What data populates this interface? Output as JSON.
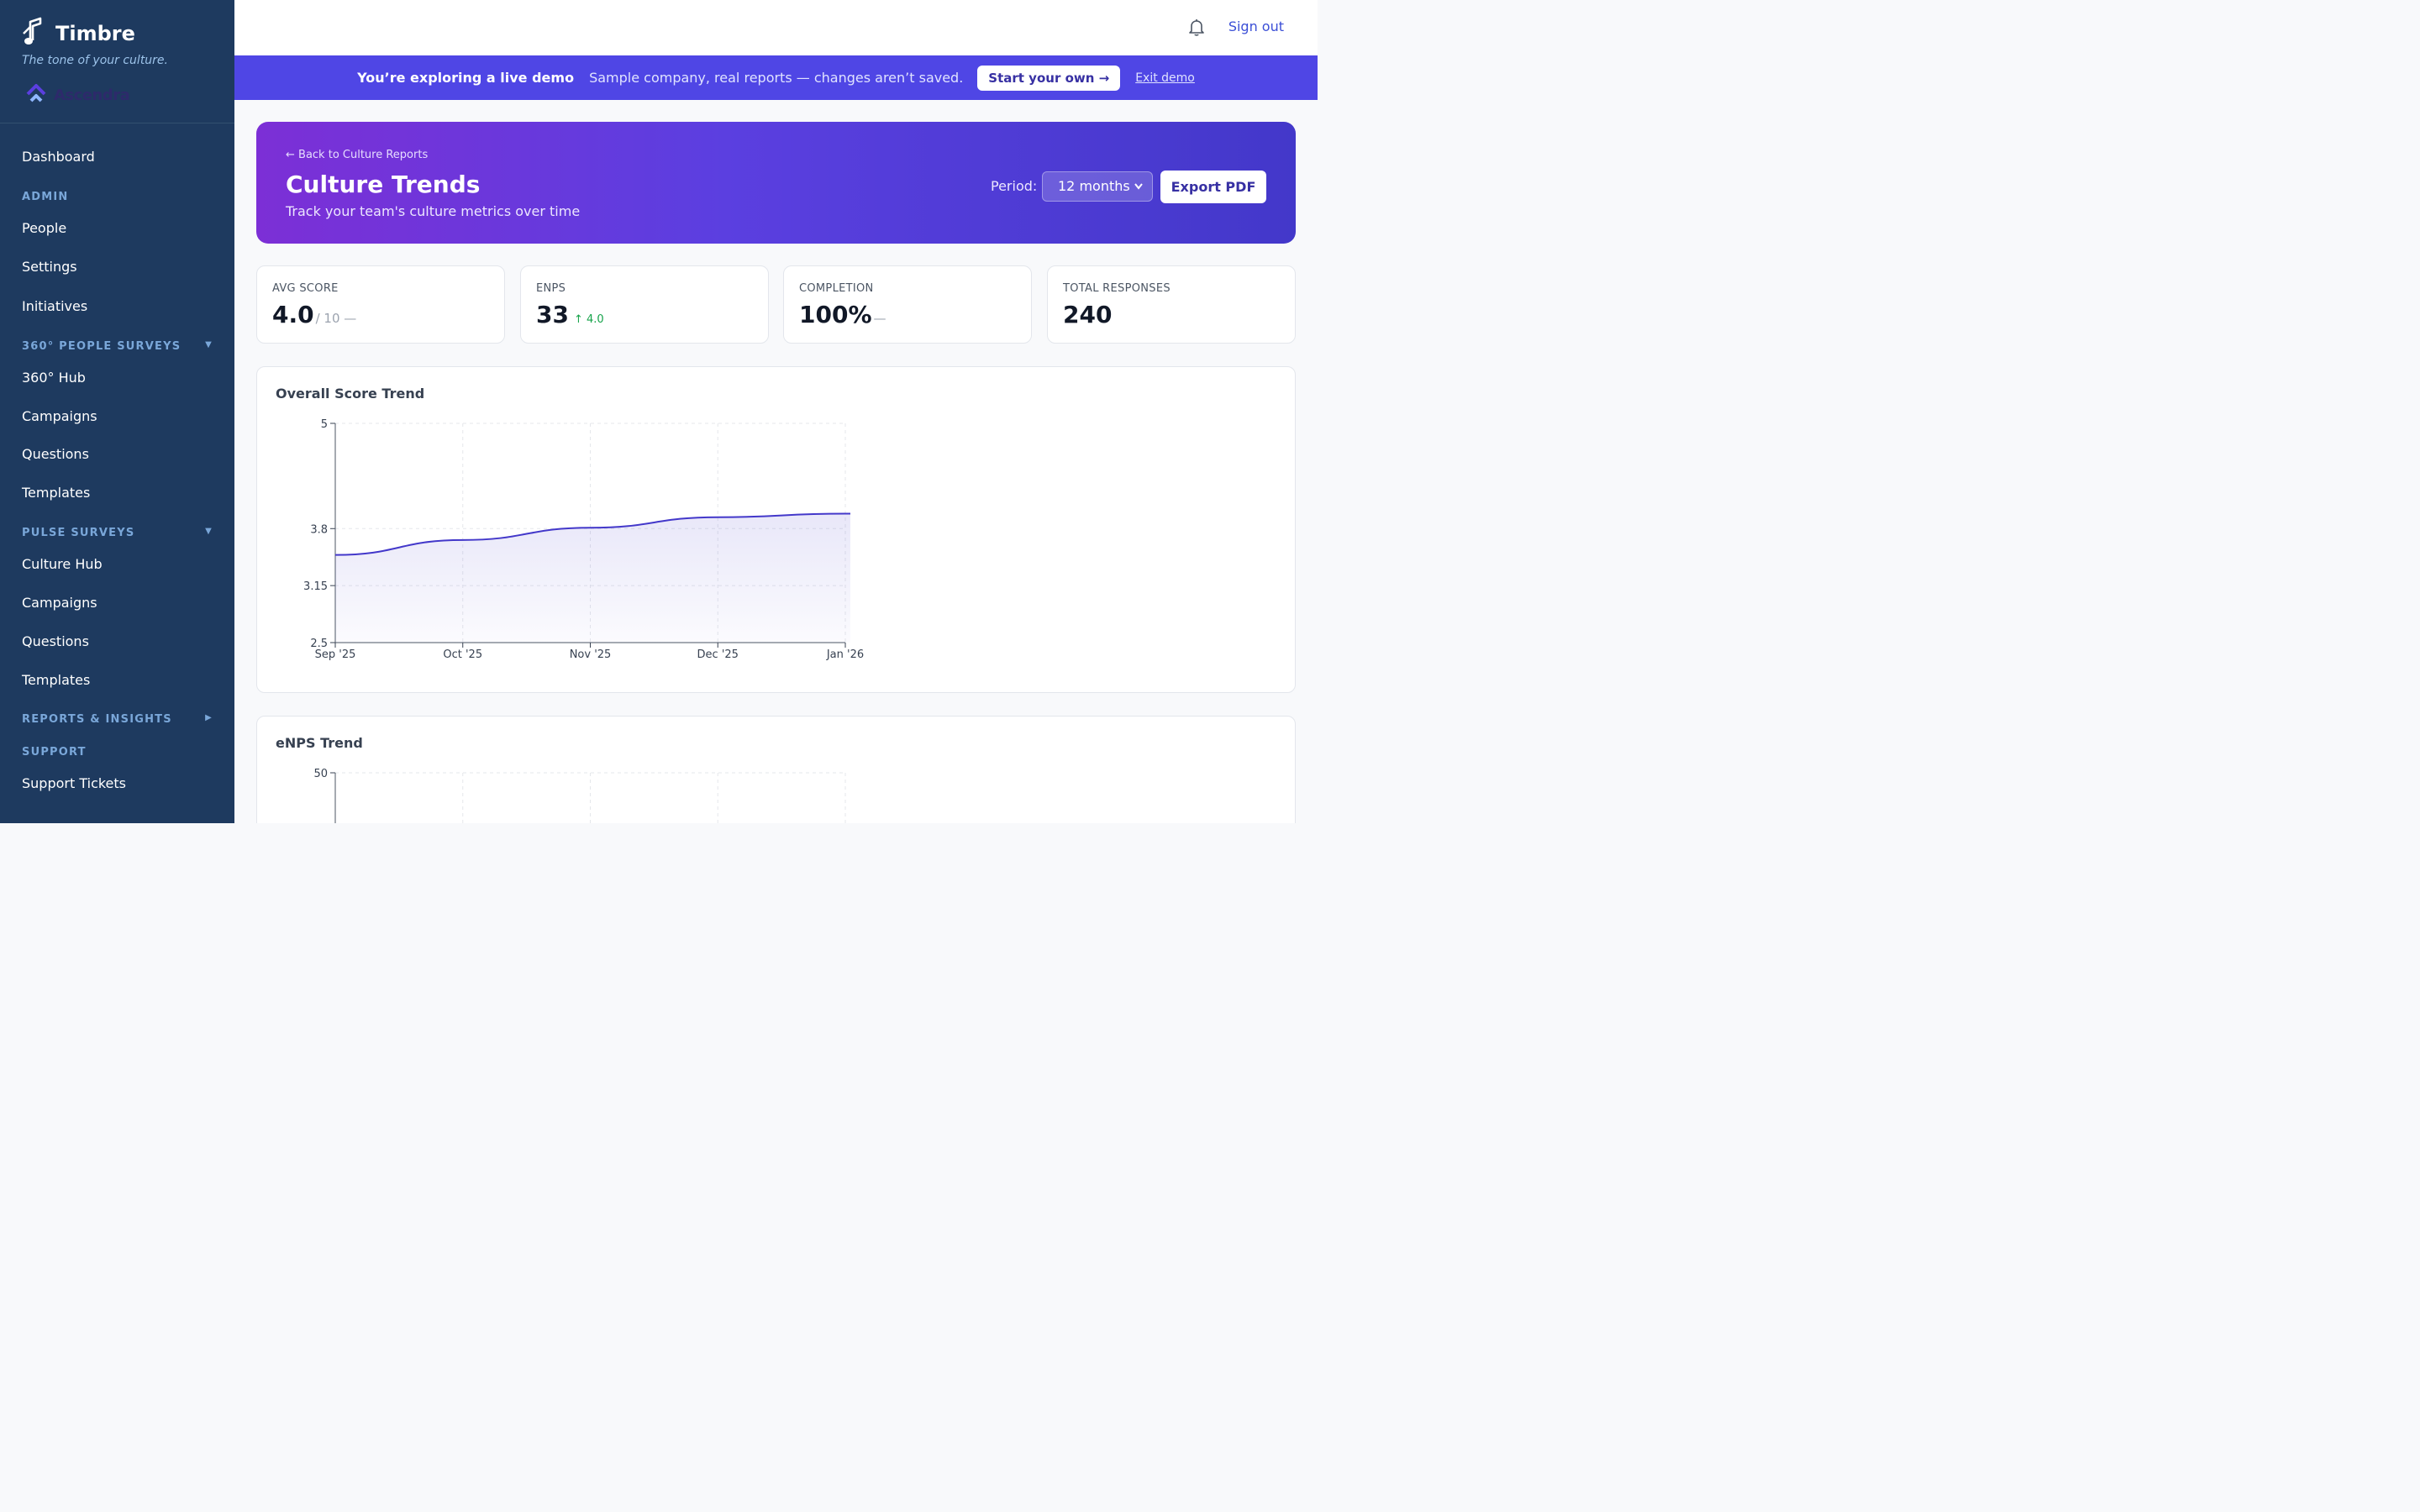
{
  "brand": {
    "name": "Timbre",
    "tagline": "The tone of your culture.",
    "org": "Ascendra"
  },
  "nav": {
    "dashboard": "Dashboard",
    "admin": {
      "title": "ADMIN",
      "people": "People",
      "settings": "Settings",
      "initiatives": "Initiatives"
    },
    "surveys360": {
      "title": "360° PEOPLE SURVEYS",
      "hub": "360° Hub",
      "campaigns": "Campaigns",
      "questions": "Questions",
      "templates": "Templates"
    },
    "pulse": {
      "title": "PULSE SURVEYS",
      "hub": "Culture Hub",
      "campaigns": "Campaigns",
      "questions": "Questions",
      "templates": "Templates"
    },
    "reports": {
      "title": "REPORTS & INSIGHTS"
    },
    "support": {
      "title": "SUPPORT",
      "tickets": "Support Tickets"
    }
  },
  "topbar": {
    "sign_out": "Sign out"
  },
  "banner": {
    "strong": "You’re exploring a live demo",
    "text": "Sample company, real reports — changes aren’t saved.",
    "cta": "Start your own →",
    "exit": "Exit demo"
  },
  "hero": {
    "back": "← Back to Culture Reports",
    "title": "Culture Trends",
    "subtitle": "Track your team's culture metrics over time",
    "period_label": "Period:",
    "period_value": "12 months",
    "export": "Export PDF"
  },
  "stats": [
    {
      "label": "AVG SCORE",
      "value": "4.0",
      "suffix": "/ 10 —",
      "delta": ""
    },
    {
      "label": "ENPS",
      "value": "33",
      "suffix": "",
      "delta": "↑ 4.0"
    },
    {
      "label": "COMPLETION",
      "value": "100%",
      "suffix": "—",
      "delta": ""
    },
    {
      "label": "TOTAL RESPONSES",
      "value": "240",
      "suffix": "",
      "delta": ""
    }
  ],
  "colors": {
    "accent": "#4f46e5",
    "sidebar": "#1e3a5f",
    "line": "#4338ca",
    "positive": "#16a34a"
  },
  "chart_data": [
    {
      "type": "area",
      "title": "Overall Score Trend",
      "x": [
        "Sep '25",
        "Oct '25",
        "Nov '25",
        "Dec '25",
        "Jan '26"
      ],
      "y_ticks": [
        "5",
        "3.8",
        "3.15",
        "2.5"
      ],
      "y_tick_values": [
        5,
        3.8,
        3.15,
        2.5
      ],
      "ylim": [
        2.5,
        5
      ],
      "values": [
        3.5,
        3.67,
        3.81,
        3.93,
        3.97
      ],
      "grid": true
    },
    {
      "type": "line",
      "title": "eNPS Trend",
      "y_ticks": [
        "50"
      ],
      "y_tick_values": [
        50
      ],
      "grid": true
    }
  ]
}
